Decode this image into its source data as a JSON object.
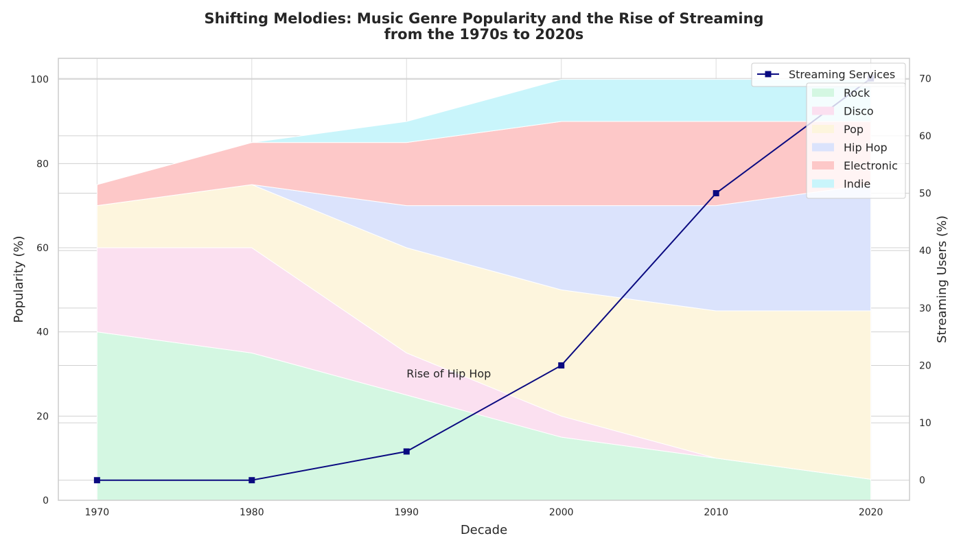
{
  "chart_data": {
    "type": "area",
    "title_lines": [
      "Shifting Melodies: Music Genre Popularity and the Rise of Streaming",
      "from the 1970s to 2020s"
    ],
    "xlabel": "Decade",
    "ylabel": "Popularity (%)",
    "y2label": "Streaming Users (%)",
    "x": [
      1970,
      1980,
      1990,
      2000,
      2010,
      2020
    ],
    "ylim": [
      0,
      105
    ],
    "y2lim": [
      -3.5,
      73.5
    ],
    "yticks": [
      0,
      20,
      40,
      60,
      80,
      100
    ],
    "y2ticks": [
      0,
      10,
      20,
      30,
      40,
      50,
      60,
      70
    ],
    "grid": true,
    "stacked": true,
    "series": [
      {
        "name": "Rock",
        "values": [
          40,
          35,
          25,
          15,
          10,
          5
        ],
        "color": "#d4f7e2"
      },
      {
        "name": "Disco",
        "values": [
          20,
          25,
          10,
          5,
          0,
          0
        ],
        "color": "#fbe0f0"
      },
      {
        "name": "Pop",
        "values": [
          10,
          15,
          25,
          30,
          35,
          40
        ],
        "color": "#fdf5dd"
      },
      {
        "name": "Hip Hop",
        "values": [
          0,
          0,
          10,
          20,
          25,
          30
        ],
        "color": "#dbe3fc"
      },
      {
        "name": "Electronic",
        "values": [
          5,
          10,
          15,
          20,
          20,
          15
        ],
        "color": "#fdc8c8"
      },
      {
        "name": "Indie",
        "values": [
          0,
          0,
          5,
          10,
          10,
          10
        ],
        "color": "#c9f5fb"
      }
    ],
    "line_series": {
      "name": "Streaming Services",
      "axis": "right",
      "values": [
        0,
        0,
        5,
        20,
        50,
        70
      ],
      "color": "#0a0a80",
      "marker": "square"
    },
    "legend_position": "top-right",
    "annotations": [
      {
        "text": "Rise of Hip Hop",
        "x": 1990,
        "y": 30
      }
    ]
  }
}
